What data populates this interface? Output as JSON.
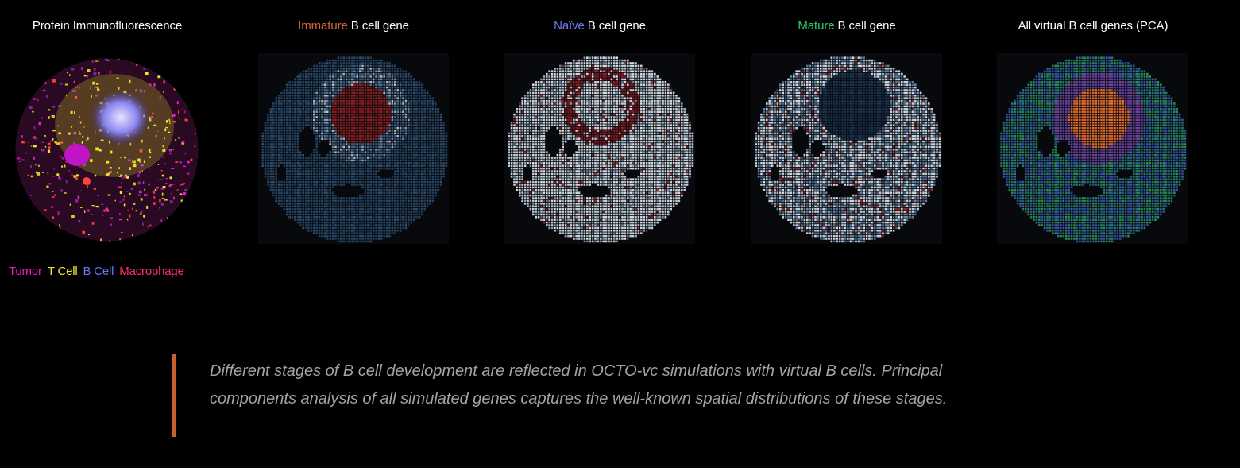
{
  "panels": [
    {
      "id": "protein",
      "stage_label": "",
      "stage_color": "#ffffff",
      "title": "Protein Immunofluorescence"
    },
    {
      "id": "immature",
      "stage_label": "Immature",
      "stage_color": "#d8643a",
      "title": "B cell gene"
    },
    {
      "id": "naive",
      "stage_label": "Naïve",
      "stage_color": "#6f7cf2",
      "title": "B cell gene"
    },
    {
      "id": "mature",
      "stage_label": "Mature",
      "stage_color": "#2fce70",
      "title": "B cell gene"
    },
    {
      "id": "pca",
      "stage_label": "",
      "stage_color": "#ffffff",
      "title": "All virtual B cell genes (PCA)"
    }
  ],
  "legend": [
    {
      "label": "Tumor",
      "color": "#ea1ad0"
    },
    {
      "label": "T Cell",
      "color": "#f2e332"
    },
    {
      "label": "B Cell",
      "color": "#6b73ff"
    },
    {
      "label": "Macrophage",
      "color": "#ff2e6a"
    }
  ],
  "caption": "Different stages of B cell development are reflected in OCTO-vc simulations with virtual B cells. Principal components analysis of all simulated genes captures the well-known spatial distributions of these stages.",
  "accent_color": "#c8612e"
}
